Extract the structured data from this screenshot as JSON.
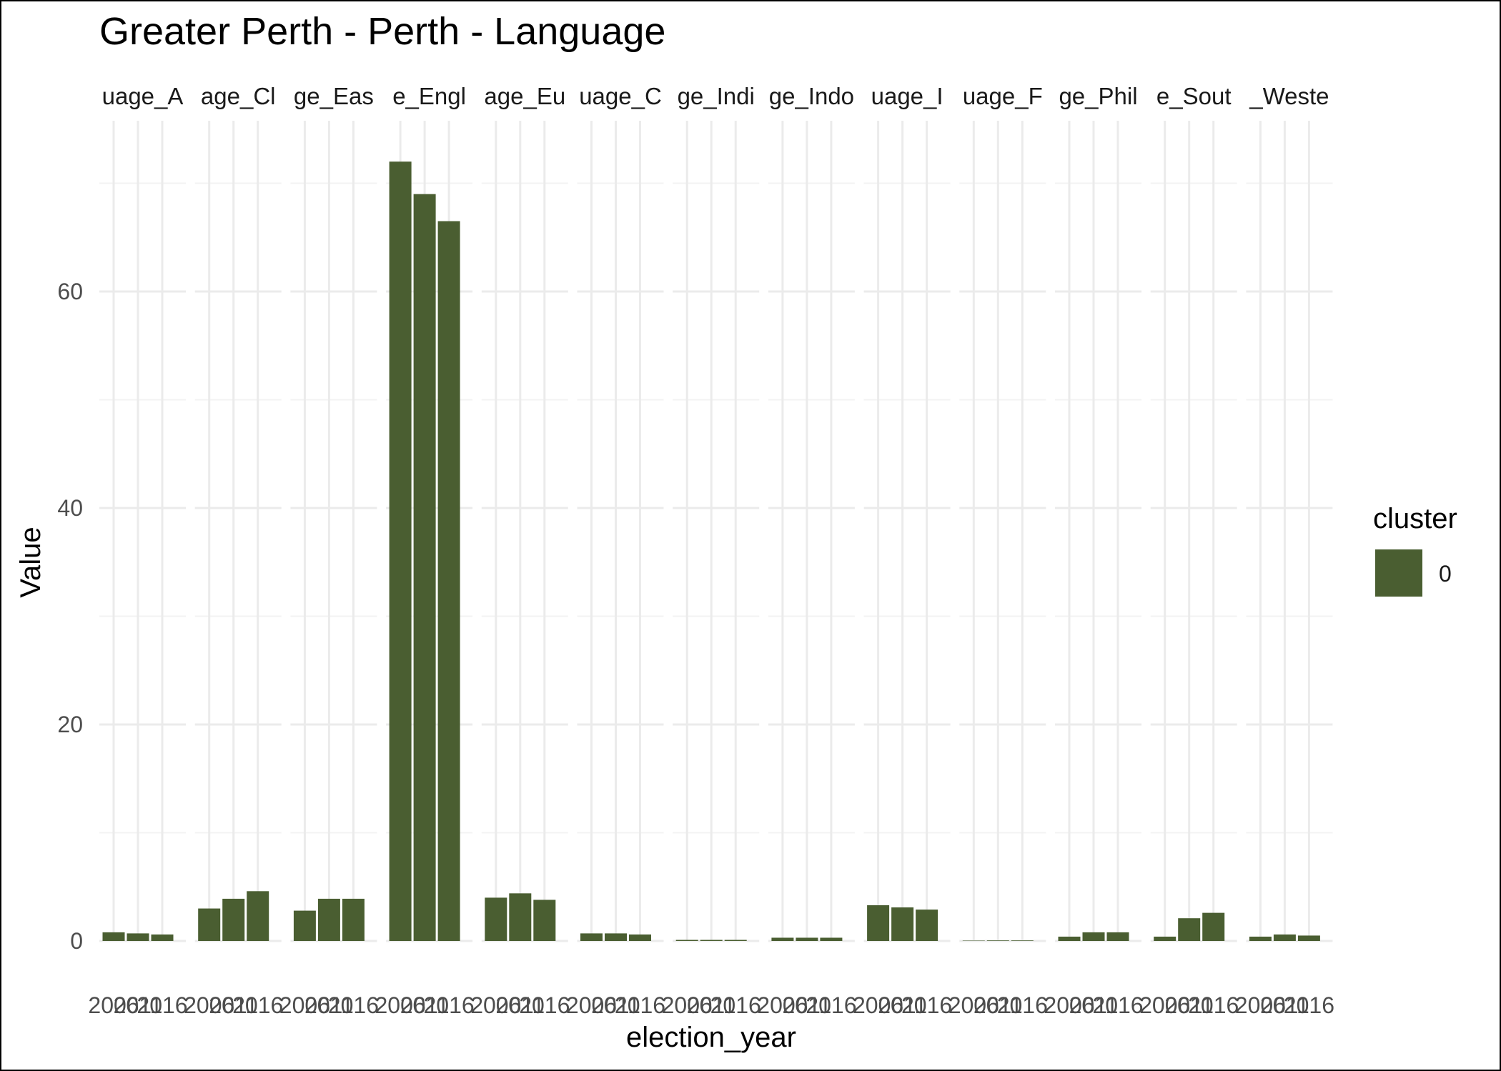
{
  "chart_data": {
    "type": "bar",
    "title": "Greater Perth - Perth - Language",
    "xlabel": "election_year",
    "ylabel": "Value",
    "ylim": [
      0,
      73
    ],
    "y_ticks": [
      0,
      20,
      40,
      60
    ],
    "grid": true,
    "legend": {
      "title": "cluster",
      "placement": "right",
      "entries": [
        {
          "label": "0",
          "color": "#4a5e31"
        }
      ]
    },
    "facet_labels": [
      "uage_A",
      "age_Cl",
      "ge_Eas",
      "e_Engl",
      "age_Eu",
      "uage_C",
      "ge_Indi",
      "ge_Indo",
      "uage_I",
      "uage_F",
      "ge_Phil",
      "e_Sout",
      "_Weste"
    ],
    "categories": [
      "2006",
      "2011",
      "2016"
    ],
    "category_labels_shown": [
      "2006",
      "2011",
      "2016"
    ],
    "facets": [
      {
        "values": [
          0.8,
          0.7,
          0.6
        ]
      },
      {
        "values": [
          3.0,
          3.9,
          4.6
        ]
      },
      {
        "values": [
          2.8,
          3.9,
          3.9
        ]
      },
      {
        "values": [
          72.0,
          69.0,
          66.5
        ]
      },
      {
        "values": [
          4.0,
          4.4,
          3.8
        ]
      },
      {
        "values": [
          0.7,
          0.7,
          0.6
        ]
      },
      {
        "values": [
          0.1,
          0.1,
          0.1
        ]
      },
      {
        "values": [
          0.3,
          0.3,
          0.3
        ]
      },
      {
        "values": [
          3.3,
          3.1,
          2.9
        ]
      },
      {
        "values": [
          0.0,
          0.05,
          0.05
        ]
      },
      {
        "values": [
          0.4,
          0.8,
          0.8
        ]
      },
      {
        "values": [
          0.4,
          2.1,
          2.6
        ]
      },
      {
        "values": [
          0.4,
          0.6,
          0.5
        ]
      }
    ],
    "colors": {
      "bar": "#4a5e31",
      "grid_major": "#ebebeb",
      "grid_minor": "#f3f3f3"
    }
  }
}
